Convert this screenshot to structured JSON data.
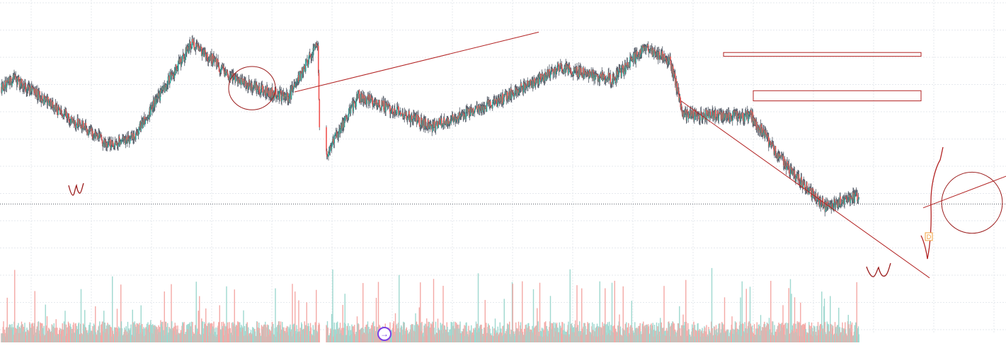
{
  "colors": {
    "background": "#ffffff",
    "grid": "#e6e9ee",
    "up": "#26a69a",
    "down": "#ef5350",
    "wick": "#4f5662",
    "volume_up": "#9ed8cf",
    "volume_down": "#f4a9a6",
    "drawing": "#b22222",
    "drawing_dark": "#9b1b1b",
    "price_line": "#555b66",
    "accent_marker": "#f29d38",
    "replay": "#7b3fe4"
  },
  "icons": {
    "replay": "arrow-right-circle-icon"
  },
  "replay_glyph": "→",
  "marker_glyph": "D",
  "chart_data": {
    "type": "candlestick",
    "title": "",
    "xlabel": "",
    "ylabel": "",
    "grid": true,
    "ylim": [
      0,
      100
    ],
    "session_gap": {
      "after_index": 149,
      "empty_slots": 12
    },
    "segments": [
      {
        "from": 0,
        "to": 6,
        "start": 54,
        "end": 60
      },
      {
        "from": 6,
        "to": 50,
        "start": 60,
        "end": 9
      },
      {
        "from": 50,
        "to": 62,
        "start": 9,
        "end": 14
      },
      {
        "from": 62,
        "to": 90,
        "start": 14,
        "end": 89
      },
      {
        "from": 90,
        "to": 110,
        "start": 89,
        "end": 59
      },
      {
        "from": 110,
        "to": 135,
        "start": 59,
        "end": 45
      },
      {
        "from": 135,
        "to": 149,
        "start": 45,
        "end": 89
      },
      {
        "from": 150,
        "to": 165,
        "start": 0,
        "end": 47
      },
      {
        "from": 165,
        "to": 200,
        "start": 47,
        "end": 23
      },
      {
        "from": 200,
        "to": 230,
        "start": 23,
        "end": 42
      },
      {
        "from": 230,
        "to": 260,
        "start": 42,
        "end": 69
      },
      {
        "from": 260,
        "to": 285,
        "start": 69,
        "end": 60
      },
      {
        "from": 285,
        "to": 300,
        "start": 60,
        "end": 85
      },
      {
        "from": 300,
        "to": 312,
        "start": 85,
        "end": 74
      },
      {
        "from": 312,
        "to": 318,
        "start": 74,
        "end": 32
      },
      {
        "from": 318,
        "to": 350,
        "start": 32,
        "end": 31
      },
      {
        "from": 350,
        "to": 368,
        "start": 31,
        "end": -12
      },
      {
        "from": 368,
        "to": 385,
        "start": -12,
        "end": -40
      },
      {
        "from": 385,
        "to": 400,
        "start": -40,
        "end": -32
      }
    ],
    "drawings": [
      {
        "kind": "line",
        "from": [
          138,
          50
        ],
        "to": [
          250,
          97
        ]
      },
      {
        "kind": "line",
        "from": [
          317,
          43
        ],
        "to": [
          434,
          -96
        ]
      },
      {
        "kind": "line",
        "from": [
          431,
          -41
        ],
        "to": [
          530,
          22
        ]
      },
      {
        "kind": "zone",
        "from": [
          337,
          81
        ],
        "to": [
          430,
          78
        ]
      },
      {
        "kind": "zone",
        "from": [
          351,
          51
        ],
        "to": [
          430,
          43
        ]
      },
      {
        "kind": "ellipse",
        "center": [
          118,
          53
        ],
        "size": [
          20,
          17
        ]
      },
      {
        "kind": "ellipse",
        "center": [
          454,
          -37
        ],
        "size": [
          26,
          24
        ]
      }
    ],
    "current_price": -38
  }
}
